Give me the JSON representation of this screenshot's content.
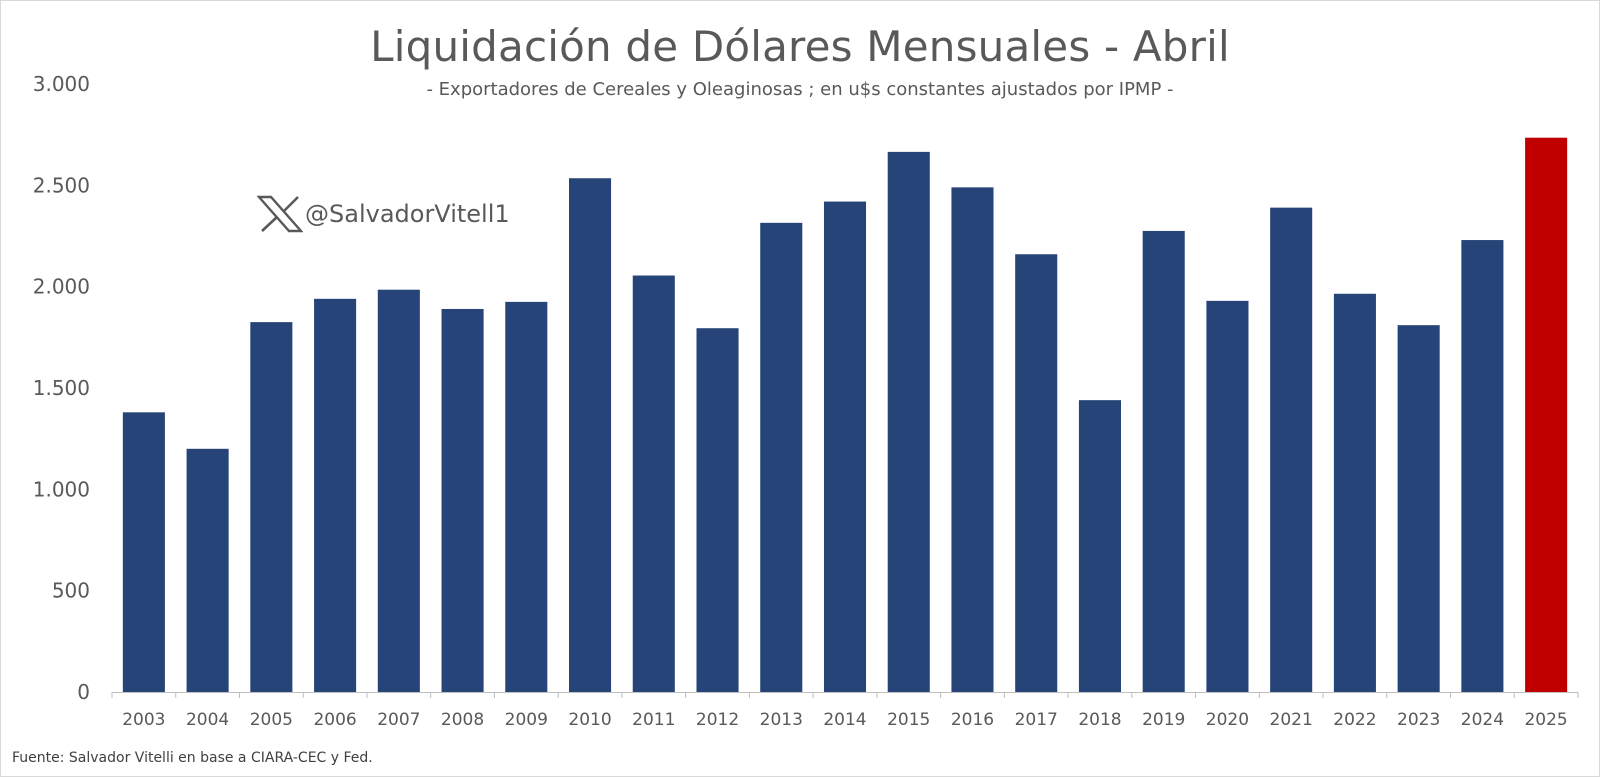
{
  "chart_data": {
    "type": "bar",
    "title": "Liquidación de Dólares Mensuales - Abril",
    "subtitle": "- Exportadores de Cereales y Oleaginosas ; en u$s constantes ajustados por IPMP -",
    "categories": [
      "2003",
      "2004",
      "2005",
      "2006",
      "2007",
      "2008",
      "2009",
      "2010",
      "2011",
      "2012",
      "2013",
      "2014",
      "2015",
      "2016",
      "2017",
      "2018",
      "2019",
      "2020",
      "2021",
      "2022",
      "2023",
      "2024",
      "2025"
    ],
    "values": [
      1380,
      1200,
      1825,
      1940,
      1985,
      1890,
      1925,
      2535,
      2055,
      1795,
      2315,
      2420,
      2665,
      2490,
      2160,
      1440,
      2275,
      1930,
      2390,
      1965,
      1810,
      2230,
      2735
    ],
    "ylim": [
      0,
      3000
    ],
    "yticks": [
      0,
      500,
      1000,
      1500,
      2000,
      2500,
      3000
    ],
    "ytick_labels": [
      "0",
      "500",
      "1.000",
      "1.500",
      "2.000",
      "2.500",
      "3.000"
    ],
    "grid": false,
    "legend": "none",
    "colors": {
      "bar": "#264478",
      "highlight": "#c00000"
    },
    "highlight_index": 22
  },
  "watermark": {
    "icon": "x-logo-icon",
    "text": "@SalvadorVitell1"
  },
  "source": "Fuente: Salvador Vitelli en base a CIARA-CEC y Fed."
}
